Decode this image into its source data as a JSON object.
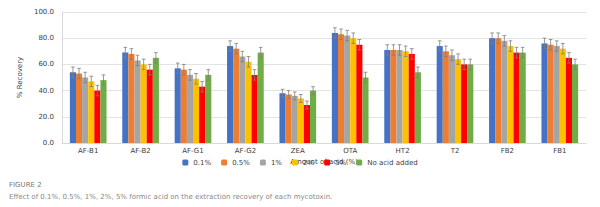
{
  "chart_data": {
    "type": "bar",
    "title": "FIGURE 2",
    "subtitle": "Effect of 0.1%, 0.5%, 1%, 2%, 5% formic acid on the extraction recovery of each mycotoxin.",
    "x_label": "Amount of acid (%)",
    "y_label": "% Recovery",
    "categories": [
      "AF-B1",
      "AF-B2",
      "AF-G1",
      "AF-G2",
      "ZEA",
      "OTA",
      "HT2",
      "T2",
      "FB2",
      "FB1"
    ],
    "series": [
      {
        "name": "0.1%",
        "color": "#4472c4",
        "values": [
          54,
          69,
          57,
          74,
          38,
          84,
          71,
          74,
          80,
          76
        ],
        "errors": [
          4,
          4,
          4,
          4,
          3,
          4,
          4,
          4,
          4,
          4
        ]
      },
      {
        "name": "0.5%",
        "color": "#ed7d31",
        "values": [
          53,
          68,
          56,
          72,
          37,
          83,
          71,
          70,
          80,
          75
        ],
        "errors": [
          4,
          4,
          4,
          4,
          3,
          4,
          4,
          4,
          4,
          4
        ]
      },
      {
        "name": "1%",
        "color": "#a5a5a5",
        "values": [
          50,
          63,
          52,
          66,
          36,
          82,
          71,
          67,
          78,
          74
        ],
        "errors": [
          4,
          4,
          4,
          4,
          3,
          4,
          4,
          4,
          4,
          4
        ]
      },
      {
        "name": "2%",
        "color": "#ffc000",
        "values": [
          47,
          60,
          49,
          62,
          34,
          80,
          70,
          64,
          74,
          72
        ],
        "errors": [
          4,
          4,
          4,
          4,
          3,
          4,
          4,
          4,
          4,
          4
        ]
      },
      {
        "name": "5%",
        "color": "#ff0000",
        "values": [
          40,
          56,
          43,
          52,
          29,
          75,
          68,
          60,
          69,
          65
        ],
        "errors": [
          4,
          4,
          4,
          4,
          3,
          4,
          4,
          4,
          4,
          4
        ]
      },
      {
        "name": "No acid added",
        "color": "#70ad47",
        "values": [
          48,
          65,
          52,
          69,
          40,
          50,
          54,
          60,
          69,
          60
        ],
        "errors": [
          4,
          4,
          4,
          4,
          3,
          4,
          4,
          4,
          4,
          4
        ]
      }
    ],
    "ylim": [
      0,
      100
    ],
    "yticks": [
      {
        "value": 0,
        "label": "0.0"
      },
      {
        "value": 20,
        "label": "20.0"
      },
      {
        "value": 40,
        "label": "40.0"
      },
      {
        "value": 60,
        "label": "60.0"
      },
      {
        "value": 80,
        "label": "80.0"
      },
      {
        "value": 100,
        "label": "100.0"
      }
    ],
    "grid": true,
    "legend": "bottom"
  }
}
